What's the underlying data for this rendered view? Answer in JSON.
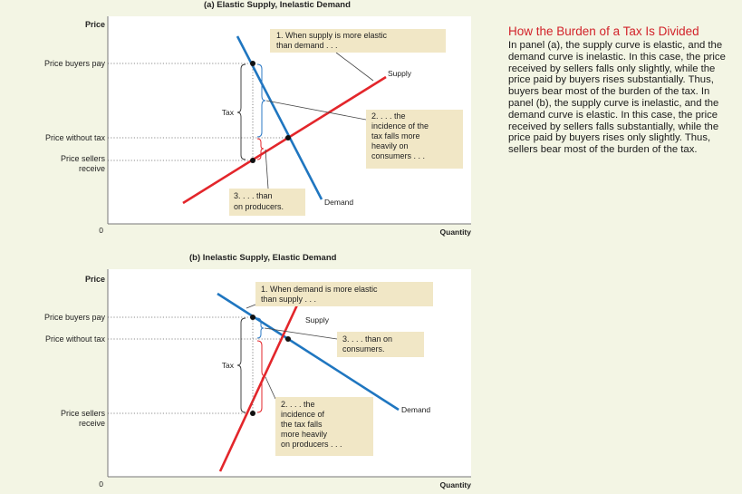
{
  "colors": {
    "background": "#f3f5e4",
    "plot_bg": "#ffffff",
    "supply": "#e3262b",
    "demand": "#1f76c0",
    "brace": "#2b78c4",
    "brace_red": "#e3262b",
    "note_bg": "#f1e7c6",
    "caption_title": "#d2232a"
  },
  "caption": {
    "title": "How the Burden of a Tax Is Divided",
    "body": "In panel (a), the supply curve is elastic, and the demand curve is inelastic. In this case, the price received by sellers falls only slightly, while the price paid by buyers rises substantially. Thus, buyers bear most of the burden of the tax. In panel (b), the supply curve is inelastic, and the demand curve is elastic. In this case, the price received by sellers falls substantially, while the price paid by buyers rises only slightly. Thus, sellers bear most of the burden of the tax."
  },
  "panel_a": {
    "heading": "(a) Elastic Supply, Inelastic Demand",
    "ylabel": "Price",
    "xlabel": "Quantity",
    "origin": "0",
    "price_buyers_pay": "Price buyers pay",
    "price_without_tax": "Price without tax",
    "price_sellers_receive": [
      "Price sellers",
      "receive"
    ],
    "tax_label": "Tax",
    "supply_label": "Supply",
    "demand_label": "Demand",
    "note1": [
      "1. When supply is more elastic",
      "than demand . . ."
    ],
    "note2": [
      "2. . . . the",
      "incidence of the",
      "tax falls more",
      "heavily on",
      "consumers . . ."
    ],
    "note3": [
      "3. . . . than",
      "on producers."
    ]
  },
  "panel_b": {
    "heading": "(b) Inelastic Supply, Elastic Demand",
    "ylabel": "Price",
    "xlabel": "Quantity",
    "origin": "0",
    "price_buyers_pay": "Price buyers pay",
    "price_without_tax": "Price without tax",
    "price_sellers_receive": [
      "Price sellers",
      "receive"
    ],
    "tax_label": "Tax",
    "supply_label": "Supply",
    "demand_label": "Demand",
    "note1": [
      "1. When demand is more elastic",
      "than supply . . ."
    ],
    "note2": [
      "2. . . . the",
      "incidence of",
      "the tax falls",
      "more heavily",
      "on producers . . ."
    ],
    "note3": [
      "3. . . . than on",
      "consumers."
    ]
  },
  "chart_data": [
    {
      "type": "line",
      "title": "(a) Elastic Supply, Inelastic Demand",
      "xlabel": "Quantity",
      "ylabel": "Price",
      "series": [
        {
          "name": "Supply",
          "slope": "shallow (elastic)"
        },
        {
          "name": "Demand",
          "slope": "steep (inelastic)"
        }
      ],
      "price_levels": [
        "Price buyers pay",
        "Price without tax",
        "Price sellers receive"
      ],
      "tax_wedge": "Tax"
    },
    {
      "type": "line",
      "title": "(b) Inelastic Supply, Elastic Demand",
      "xlabel": "Quantity",
      "ylabel": "Price",
      "series": [
        {
          "name": "Supply",
          "slope": "steep (inelastic)"
        },
        {
          "name": "Demand",
          "slope": "shallow (elastic)"
        }
      ],
      "price_levels": [
        "Price buyers pay",
        "Price without tax",
        "Price sellers receive"
      ],
      "tax_wedge": "Tax"
    }
  ]
}
